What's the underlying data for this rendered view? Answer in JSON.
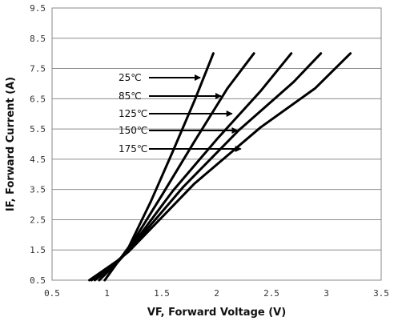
{
  "chart_data": {
    "type": "line",
    "xlabel": "VF, Forward Voltage (V)",
    "ylabel": "IF, Forward Current (A)",
    "xlim": [
      0.5,
      3.5
    ],
    "ylim": [
      0.5,
      9.5
    ],
    "x_ticks": [
      "0.5",
      "1",
      "1.5",
      "2",
      "2.5",
      "3",
      "3.5"
    ],
    "y_ticks": [
      "0.5",
      "1.5",
      "2.5",
      "3.5",
      "4.5",
      "5.5",
      "6.5",
      "7.5",
      "8.5",
      "9.5"
    ],
    "grid": "horizontal",
    "series": [
      {
        "name": "25℃",
        "color": "#000000",
        "points": [
          [
            0.98,
            0.5
          ],
          [
            1.1,
            1.1
          ],
          [
            1.2,
            1.6
          ],
          [
            1.4,
            3.1
          ],
          [
            1.6,
            4.75
          ],
          [
            1.8,
            6.45
          ],
          [
            1.97,
            8.0
          ]
        ]
      },
      {
        "name": "85℃",
        "color": "#000000",
        "points": [
          [
            0.93,
            0.5
          ],
          [
            1.1,
            1.1
          ],
          [
            1.2,
            1.55
          ],
          [
            1.5,
            3.3
          ],
          [
            1.8,
            5.1
          ],
          [
            2.1,
            6.85
          ],
          [
            2.34,
            8.0
          ]
        ]
      },
      {
        "name": "125℃",
        "color": "#000000",
        "points": [
          [
            0.89,
            0.5
          ],
          [
            1.1,
            1.1
          ],
          [
            1.2,
            1.5
          ],
          [
            1.6,
            3.45
          ],
          [
            2.0,
            5.15
          ],
          [
            2.4,
            6.75
          ],
          [
            2.68,
            8.0
          ]
        ]
      },
      {
        "name": "150℃",
        "color": "#000000",
        "points": [
          [
            0.86,
            0.5
          ],
          [
            1.1,
            1.15
          ],
          [
            1.2,
            1.48
          ],
          [
            1.7,
            3.6
          ],
          [
            2.2,
            5.45
          ],
          [
            2.7,
            7.05
          ],
          [
            2.95,
            8.0
          ]
        ]
      },
      {
        "name": "175℃",
        "color": "#000000",
        "points": [
          [
            0.84,
            0.5
          ],
          [
            1.1,
            1.15
          ],
          [
            1.2,
            1.45
          ],
          [
            1.8,
            3.7
          ],
          [
            2.4,
            5.55
          ],
          [
            2.9,
            6.85
          ],
          [
            3.22,
            8.0
          ]
        ]
      }
    ],
    "legend_arrows": [
      {
        "label": "25℃",
        "arrow_to": [
          1.85,
          7.0
        ]
      },
      {
        "label": "85℃",
        "arrow_to": [
          2.04,
          6.6
        ]
      },
      {
        "label": "125℃",
        "arrow_to": [
          2.14,
          6.1
        ]
      },
      {
        "label": "150℃",
        "arrow_to": [
          2.19,
          5.55
        ]
      },
      {
        "label": "175℃",
        "arrow_to": [
          2.22,
          4.95
        ]
      }
    ]
  }
}
